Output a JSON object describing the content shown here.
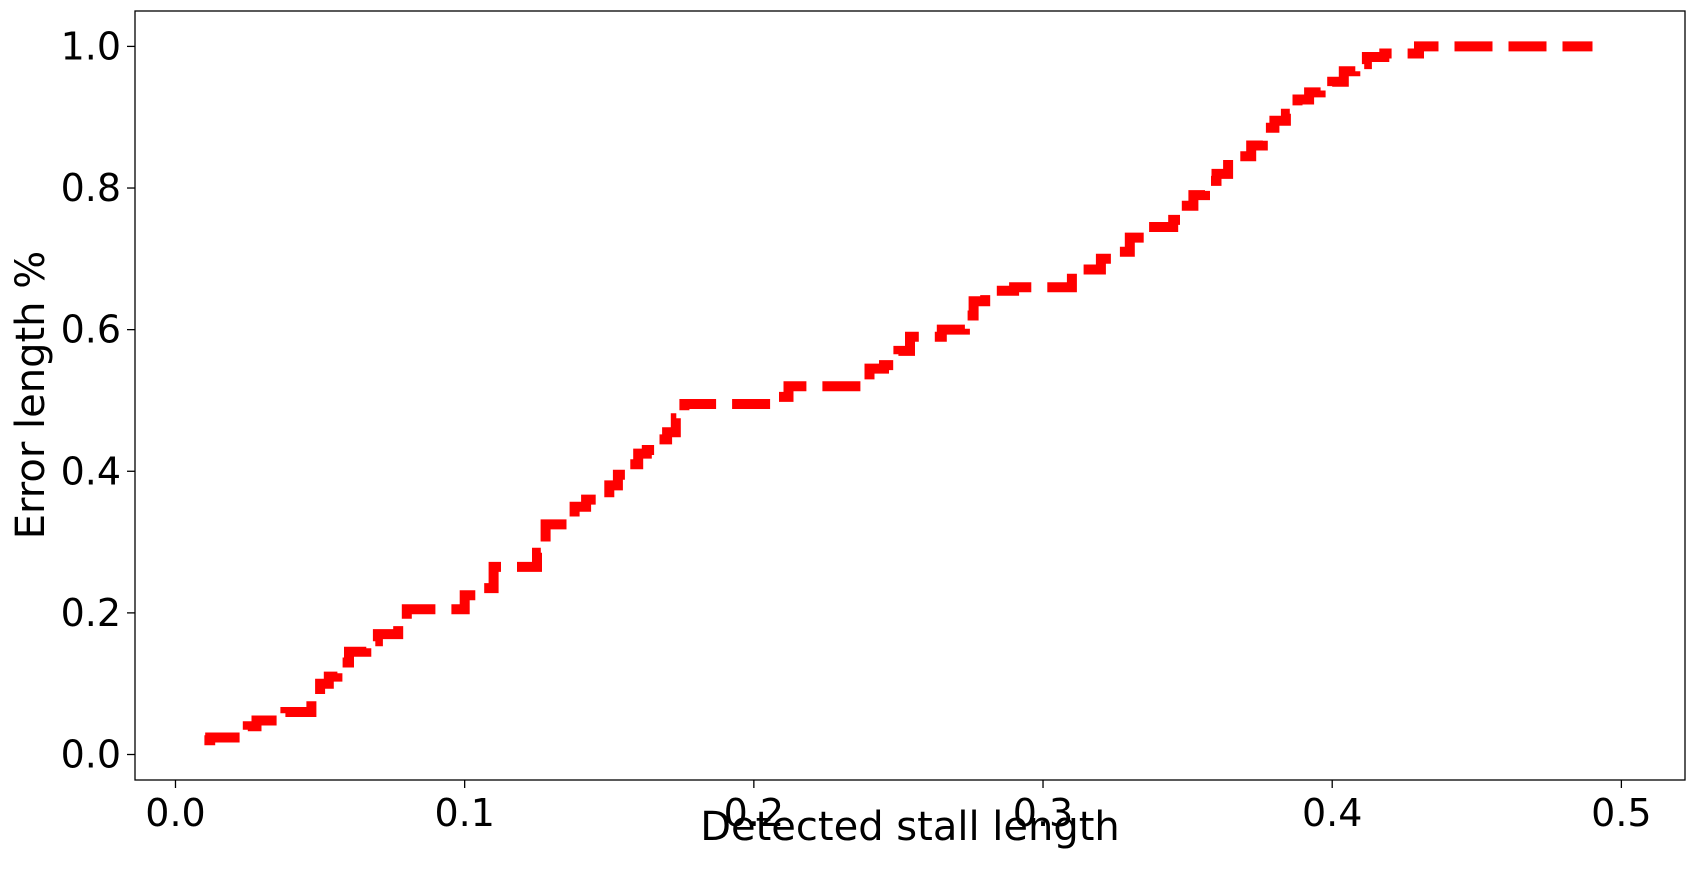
{
  "chart_data": {
    "type": "line",
    "title": "",
    "xlabel": "Detected stall length",
    "ylabel": "Error length %",
    "xlim": [
      -0.014,
      0.522
    ],
    "ylim": [
      -0.036,
      1.05
    ],
    "xticks": [
      0.0,
      0.1,
      0.2,
      0.3,
      0.4,
      0.5
    ],
    "xtick_labels": [
      "0.0",
      "0.1",
      "0.2",
      "0.3",
      "0.4",
      "0.5"
    ],
    "yticks": [
      0.0,
      0.2,
      0.4,
      0.6,
      0.8,
      1.0
    ],
    "ytick_labels": [
      "0.0",
      "0.2",
      "0.4",
      "0.6",
      "0.8",
      "1.0"
    ],
    "grid": false,
    "legend": "none",
    "series": [
      {
        "color": "#ff0000",
        "line_style": "dashed",
        "step": true,
        "x": [
          0.01,
          0.012,
          0.015,
          0.02,
          0.025,
          0.028,
          0.032,
          0.038,
          0.043,
          0.047,
          0.05,
          0.053,
          0.056,
          0.06,
          0.063,
          0.066,
          0.07,
          0.073,
          0.077,
          0.08,
          0.085,
          0.09,
          0.095,
          0.1,
          0.105,
          0.11,
          0.115,
          0.12,
          0.125,
          0.128,
          0.131,
          0.135,
          0.138,
          0.142,
          0.146,
          0.15,
          0.153,
          0.157,
          0.16,
          0.163,
          0.167,
          0.17,
          0.173,
          0.176,
          0.18,
          0.19,
          0.2,
          0.207,
          0.212,
          0.218,
          0.225,
          0.235,
          0.24,
          0.245,
          0.25,
          0.254,
          0.26,
          0.265,
          0.27,
          0.273,
          0.276,
          0.28,
          0.285,
          0.29,
          0.3,
          0.31,
          0.315,
          0.32,
          0.325,
          0.33,
          0.335,
          0.34,
          0.345,
          0.348,
          0.352,
          0.356,
          0.36,
          0.364,
          0.368,
          0.372,
          0.376,
          0.38,
          0.384,
          0.388,
          0.392,
          0.396,
          0.4,
          0.404,
          0.408,
          0.412,
          0.418,
          0.425,
          0.43,
          0.44,
          0.46,
          0.49
        ],
        "y": [
          0.02,
          0.024,
          0.024,
          0.024,
          0.04,
          0.048,
          0.048,
          0.06,
          0.06,
          0.08,
          0.1,
          0.11,
          0.13,
          0.145,
          0.145,
          0.16,
          0.17,
          0.17,
          0.19,
          0.205,
          0.205,
          0.205,
          0.205,
          0.225,
          0.235,
          0.265,
          0.265,
          0.265,
          0.285,
          0.325,
          0.325,
          0.325,
          0.35,
          0.36,
          0.36,
          0.38,
          0.395,
          0.41,
          0.425,
          0.43,
          0.445,
          0.455,
          0.475,
          0.495,
          0.495,
          0.495,
          0.495,
          0.505,
          0.52,
          0.52,
          0.52,
          0.52,
          0.545,
          0.55,
          0.57,
          0.59,
          0.59,
          0.6,
          0.6,
          0.62,
          0.64,
          0.655,
          0.655,
          0.66,
          0.66,
          0.685,
          0.685,
          0.7,
          0.71,
          0.73,
          0.745,
          0.745,
          0.755,
          0.775,
          0.79,
          0.81,
          0.82,
          0.84,
          0.845,
          0.86,
          0.885,
          0.895,
          0.905,
          0.925,
          0.935,
          0.94,
          0.95,
          0.965,
          0.975,
          0.985,
          0.99,
          0.99,
          1.0,
          1.0,
          1.0,
          1.0
        ]
      }
    ]
  }
}
